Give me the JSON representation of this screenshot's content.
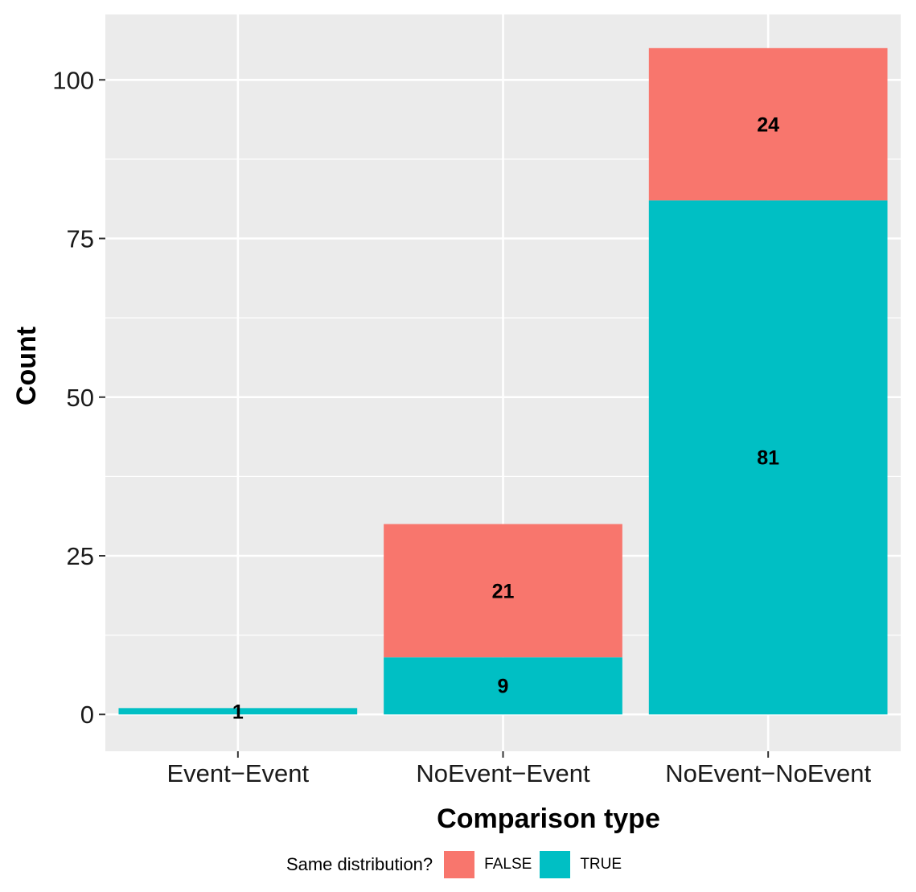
{
  "chart_data": {
    "type": "bar",
    "stacked": true,
    "categories": [
      "Event−Event",
      "NoEvent−Event",
      "NoEvent−NoEvent"
    ],
    "series": [
      {
        "name": "TRUE",
        "color": "#00BFC4",
        "values": [
          1,
          9,
          81
        ]
      },
      {
        "name": "FALSE",
        "color": "#F8766D",
        "values": [
          0,
          21,
          24
        ]
      }
    ],
    "xlabel": "Comparison type",
    "ylabel": "Count",
    "ylim": [
      -5.8,
      110.3
    ],
    "yticks": [
      0,
      25,
      50,
      75,
      100
    ],
    "ytick_labels": [
      "0",
      "25",
      "50",
      "75",
      "100"
    ],
    "panel_background": "#EBEBEB",
    "grid": true,
    "legend": {
      "title": "Same distribution?",
      "position": "bottom",
      "entries": [
        {
          "label": "FALSE",
          "color": "#F8766D"
        },
        {
          "label": "TRUE",
          "color": "#00BFC4"
        }
      ]
    }
  }
}
